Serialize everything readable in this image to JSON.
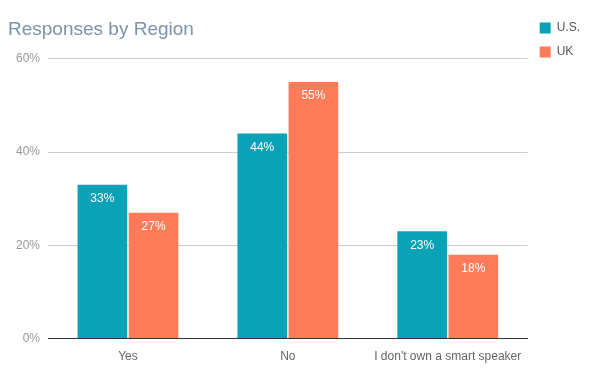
{
  "chart_data": {
    "type": "bar",
    "title": "Responses by Region",
    "categories": [
      "Yes",
      "No",
      "I don't own a smart speaker"
    ],
    "series": [
      {
        "name": "U.S.",
        "color": "#0aa2b6",
        "values": [
          33,
          44,
          23
        ],
        "value_labels": [
          "33%",
          "44%",
          "23%"
        ]
      },
      {
        "name": "UK",
        "color": "#ff7b5a",
        "values": [
          27,
          55,
          18
        ],
        "value_labels": [
          "27%",
          "55%",
          "18%"
        ]
      }
    ],
    "ylim": [
      0,
      60
    ],
    "yticks": [
      {
        "value": 0,
        "label": "0%"
      },
      {
        "value": 20,
        "label": "20%"
      },
      {
        "value": 40,
        "label": "40%"
      },
      {
        "value": 60,
        "label": "60%"
      }
    ],
    "grid": true,
    "legend": "right",
    "data_labels": true
  }
}
